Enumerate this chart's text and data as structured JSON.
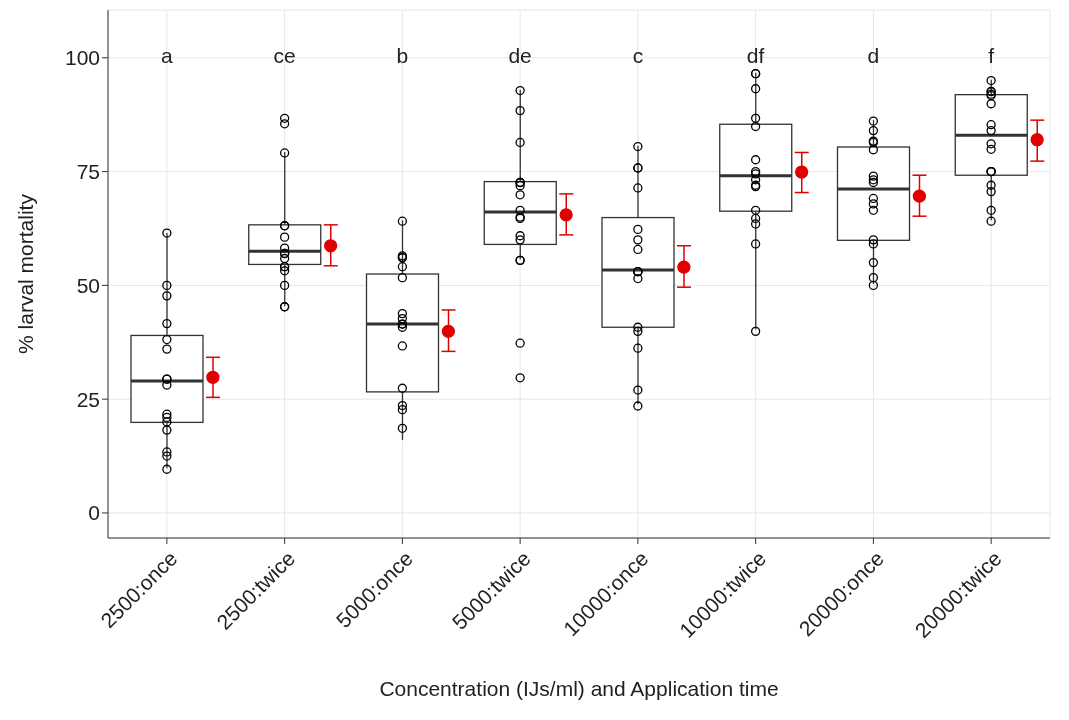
{
  "chart_data": {
    "type": "box",
    "xlabel": "Concentration (IJs/ml) and Application time",
    "ylabel": "% larval mortality",
    "categories": [
      "2500:once",
      "2500:twice",
      "5000:once",
      "5000:twice",
      "10000:once",
      "10000:twice",
      "20000:once",
      "20000:twice"
    ],
    "boxes": [
      {
        "low": 9.8,
        "q1": 19.9,
        "median": 29.0,
        "q3": 39.0,
        "high": 61.5
      },
      {
        "low": 45.4,
        "q1": 54.6,
        "median": 57.5,
        "q3": 63.3,
        "high": 79.3
      },
      {
        "low": 16.0,
        "q1": 26.6,
        "median": 41.5,
        "q3": 52.5,
        "high": 64.3
      },
      {
        "low": 55.7,
        "q1": 59.0,
        "median": 66.1,
        "q3": 72.8,
        "high": 93.0
      },
      {
        "low": 23.9,
        "q1": 40.8,
        "median": 53.4,
        "q3": 64.9,
        "high": 80.7
      },
      {
        "low": 40.3,
        "q1": 66.3,
        "median": 74.1,
        "q3": 85.4,
        "high": 96.7
      },
      {
        "low": 50.3,
        "q1": 59.9,
        "median": 71.2,
        "q3": 80.4,
        "high": 86.3
      },
      {
        "low": 64.3,
        "q1": 74.2,
        "median": 83.0,
        "q3": 91.9,
        "high": 95.2
      }
    ],
    "series": [
      {
        "type": "scatter",
        "color": "#000000",
        "x": [
          "2500:once",
          "2500:once",
          "2500:once",
          "2500:once",
          "2500:once",
          "2500:once",
          "2500:once",
          "2500:once",
          "2500:once",
          "2500:once",
          "2500:once",
          "2500:once",
          "2500:once",
          "2500:once",
          "2500:once",
          "2500:once",
          "2500:twice",
          "2500:twice",
          "2500:twice",
          "2500:twice",
          "2500:twice",
          "2500:twice",
          "2500:twice",
          "2500:twice",
          "2500:twice",
          "2500:twice",
          "2500:twice",
          "2500:twice",
          "2500:twice",
          "2500:twice",
          "2500:twice",
          "2500:twice",
          "5000:once",
          "5000:once",
          "5000:once",
          "5000:once",
          "5000:once",
          "5000:once",
          "5000:once",
          "5000:once",
          "5000:once",
          "5000:once",
          "5000:once",
          "5000:once",
          "5000:once",
          "5000:once",
          "5000:once",
          "5000:once",
          "5000:twice",
          "5000:twice",
          "5000:twice",
          "5000:twice",
          "5000:twice",
          "5000:twice",
          "5000:twice",
          "5000:twice",
          "5000:twice",
          "5000:twice",
          "5000:twice",
          "5000:twice",
          "5000:twice",
          "5000:twice",
          "5000:twice",
          "5000:twice",
          "5000:twice",
          "10000:once",
          "10000:once",
          "10000:once",
          "10000:once",
          "10000:once",
          "10000:once",
          "10000:once",
          "10000:once",
          "10000:once",
          "10000:once",
          "10000:once",
          "10000:once",
          "10000:once",
          "10000:once",
          "10000:once",
          "10000:once",
          "10000:twice",
          "10000:twice",
          "10000:twice",
          "10000:twice",
          "10000:twice",
          "10000:twice",
          "10000:twice",
          "10000:twice",
          "10000:twice",
          "10000:twice",
          "10000:twice",
          "10000:twice",
          "10000:twice",
          "10000:twice",
          "10000:twice",
          "10000:twice",
          "20000:once",
          "20000:once",
          "20000:once",
          "20000:once",
          "20000:once",
          "20000:once",
          "20000:once",
          "20000:once",
          "20000:once",
          "20000:once",
          "20000:once",
          "20000:once",
          "20000:once",
          "20000:once",
          "20000:once",
          "20000:once",
          "20000:twice",
          "20000:twice",
          "20000:twice",
          "20000:twice",
          "20000:twice",
          "20000:twice",
          "20000:twice",
          "20000:twice",
          "20000:twice",
          "20000:twice",
          "20000:twice",
          "20000:twice",
          "20000:twice",
          "20000:twice",
          "20000:twice",
          "20000:twice",
          "20000:twice"
        ],
        "values": [
          61.5,
          50.0,
          47.7,
          41.6,
          38.1,
          36.0,
          29.4,
          29.4,
          28.1,
          21.7,
          21.0,
          20.0,
          18.2,
          13.4,
          12.5,
          9.6,
          86.7,
          85.5,
          79.1,
          63.1,
          63.1,
          60.6,
          58.2,
          57.0,
          57.0,
          55.9,
          54.1,
          54.1,
          53.2,
          50.0,
          45.3,
          45.3,
          64.1,
          56.5,
          56.1,
          56.1,
          54.1,
          51.7,
          43.8,
          42.7,
          41.5,
          41.5,
          40.8,
          36.7,
          27.4,
          23.6,
          22.7,
          18.6,
          92.8,
          88.4,
          81.4,
          72.6,
          72.6,
          72.6,
          71.9,
          69.9,
          66.5,
          65.0,
          64.7,
          60.9,
          60.0,
          55.5,
          55.5,
          37.3,
          29.7,
          80.5,
          75.8,
          75.8,
          71.4,
          62.3,
          60.0,
          57.9,
          53.0,
          53.0,
          53.0,
          51.5,
          40.8,
          39.9,
          36.2,
          27.0,
          23.5,
          96.5,
          96.5,
          93.2,
          86.7,
          84.9,
          77.6,
          75.0,
          74.5,
          73.2,
          72.0,
          71.7,
          66.5,
          64.7,
          63.5,
          59.1,
          39.9,
          86.1,
          84.0,
          81.7,
          81.4,
          79.8,
          74.0,
          73.2,
          72.6,
          69.1,
          67.9,
          66.5,
          60.0,
          59.1,
          55.0,
          51.7,
          50.0,
          95.0,
          92.6,
          92.6,
          92.0,
          91.7,
          89.9,
          85.3,
          84.0,
          81.1,
          79.9,
          75.0,
          75.0,
          75.0,
          72.0,
          70.6,
          66.5,
          64.1
        ]
      },
      {
        "type": "scatter",
        "color": "#e00000",
        "x": [
          "2500:once",
          "2500:twice",
          "5000:once",
          "5000:twice",
          "10000:once",
          "10000:twice",
          "20000:once",
          "20000:twice"
        ],
        "values": [
          29.8,
          58.7,
          39.9,
          65.5,
          54.0,
          74.9,
          69.6,
          82.0
        ],
        "errors": [
          [
            25.4,
            34.2
          ],
          [
            54.3,
            63.3
          ],
          [
            35.5,
            44.6
          ],
          [
            61.1,
            70.1
          ],
          [
            49.6,
            58.7
          ],
          [
            70.4,
            79.2
          ],
          [
            65.2,
            74.2
          ],
          [
            77.3,
            86.3
          ]
        ]
      }
    ],
    "annotations": [
      "a",
      "ce",
      "b",
      "de",
      "c",
      "df",
      "d",
      "f"
    ],
    "ylim": [
      -5.5,
      110.5
    ],
    "yticks": [
      0,
      25,
      50,
      75,
      100
    ],
    "grid": true,
    "marker": "circle"
  }
}
